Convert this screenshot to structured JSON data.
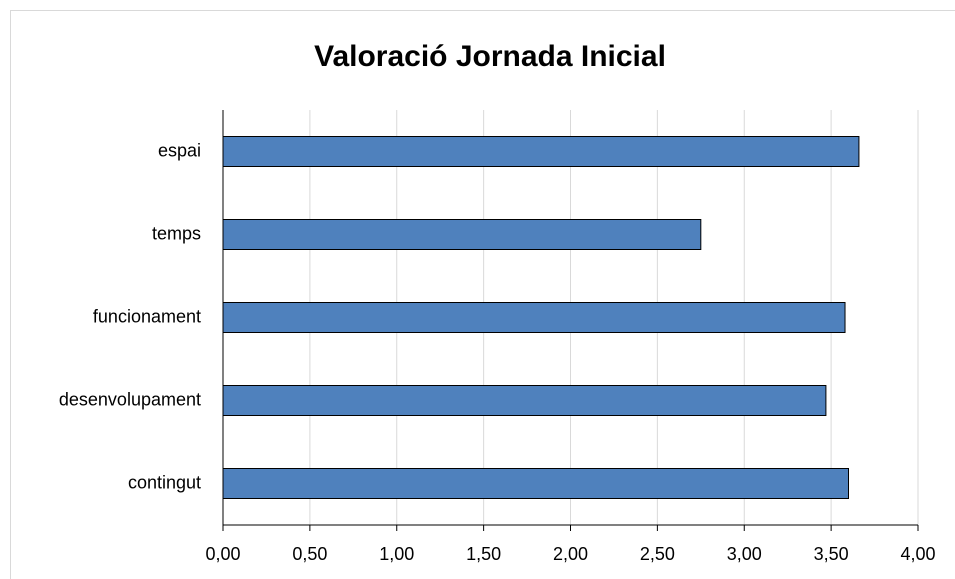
{
  "chart_data": {
    "type": "hbar",
    "title": "Valoració Jornada Inicial",
    "categories": [
      "espai",
      "temps",
      "funcionament",
      "desenvolupament",
      "contingut"
    ],
    "values": [
      3.66,
      2.75,
      3.58,
      3.47,
      3.6
    ],
    "color": "#4f81bd",
    "xlim": [
      0,
      4
    ],
    "xticks": [
      {
        "value": 0,
        "label": "0,00"
      },
      {
        "value": 0.5,
        "label": "0,50"
      },
      {
        "value": 1,
        "label": "1,00"
      },
      {
        "value": 1.5,
        "label": "1,50"
      },
      {
        "value": 2,
        "label": "2,00"
      },
      {
        "value": 2.5,
        "label": "2,50"
      },
      {
        "value": 3,
        "label": "3,00"
      },
      {
        "value": 3.5,
        "label": "3,50"
      },
      {
        "value": 4,
        "label": "4,00"
      }
    ],
    "grid": true
  }
}
